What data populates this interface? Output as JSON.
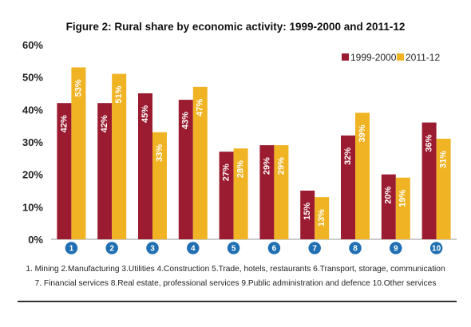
{
  "chart_data": {
    "type": "bar",
    "title": "Figure 2: Rural share by economic activity: 1999-2000 and 2011-12",
    "categories": [
      "1",
      "2",
      "3",
      "4",
      "5",
      "6",
      "7",
      "8",
      "9",
      "10"
    ],
    "series": [
      {
        "name": "1999-2000",
        "color": "#9b1b30",
        "values": [
          42,
          42,
          45,
          43,
          27,
          29,
          15,
          32,
          20,
          36
        ],
        "labels": [
          "42%",
          "42%",
          "45%",
          "43%",
          "27%",
          "29%",
          "15%",
          "32%",
          "20%",
          "36%"
        ]
      },
      {
        "name": "2011-12",
        "color": "#f0b323",
        "values": [
          53,
          51,
          33,
          47,
          28,
          29,
          13,
          39,
          19,
          31
        ],
        "labels": [
          "53%",
          "51%",
          "33%",
          "47%",
          "28%",
          "29%",
          "13%",
          "39%",
          "19%",
          "31%"
        ]
      }
    ],
    "yticks": [
      "0%",
      "10%",
      "20%",
      "30%",
      "40%",
      "50%",
      "60%"
    ],
    "ylim": [
      0,
      60
    ],
    "xlabel": "",
    "ylabel": "",
    "legend_position": "top-right",
    "grid": false,
    "category_badge_color": "#1f6fb2",
    "footnote_lines": [
      "1. Mining  2.Manufacturing  3.Utilities  4.Construction 5.Trade, hotels, restaurants  6.Transport, storage, communication",
      "7. Financial services  8.Real estate, professional services 9.Public administration and defence 10.Other services"
    ]
  }
}
